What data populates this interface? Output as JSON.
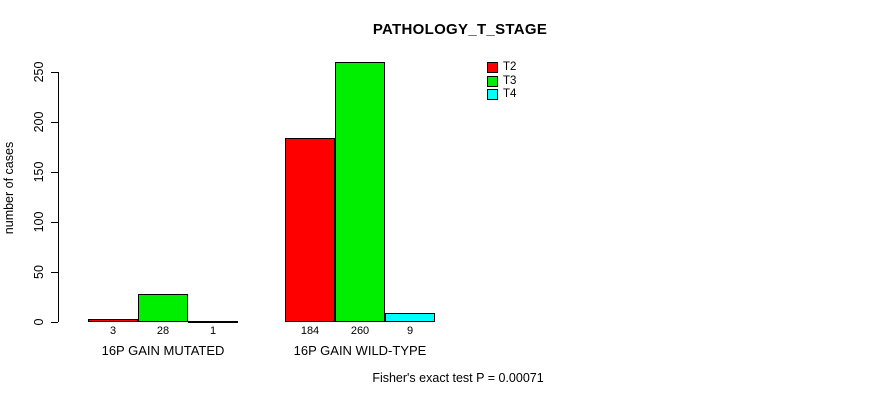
{
  "chart_data": {
    "type": "bar",
    "title": "PATHOLOGY_T_STAGE",
    "ylabel": "number of cases",
    "xlabel": "",
    "ylim": [
      0,
      250
    ],
    "yticks": [
      0,
      50,
      100,
      150,
      200,
      250
    ],
    "grid": false,
    "legend_position": "top-right-inside",
    "categories": [
      "16P GAIN MUTATED",
      "16P GAIN WILD-TYPE"
    ],
    "series": [
      {
        "name": "T2",
        "color": "#ff0000",
        "values": [
          3,
          184
        ]
      },
      {
        "name": "T3",
        "color": "#00ee00",
        "values": [
          28,
          260
        ]
      },
      {
        "name": "T4",
        "color": "#00ffff",
        "values": [
          1,
          9
        ]
      }
    ],
    "bar_value_labels_shown": true,
    "annotation": "Fisher's exact test P = 0.00071"
  },
  "colors": {
    "background": "#ffffff",
    "axis": "#000000",
    "text": "#000000"
  }
}
